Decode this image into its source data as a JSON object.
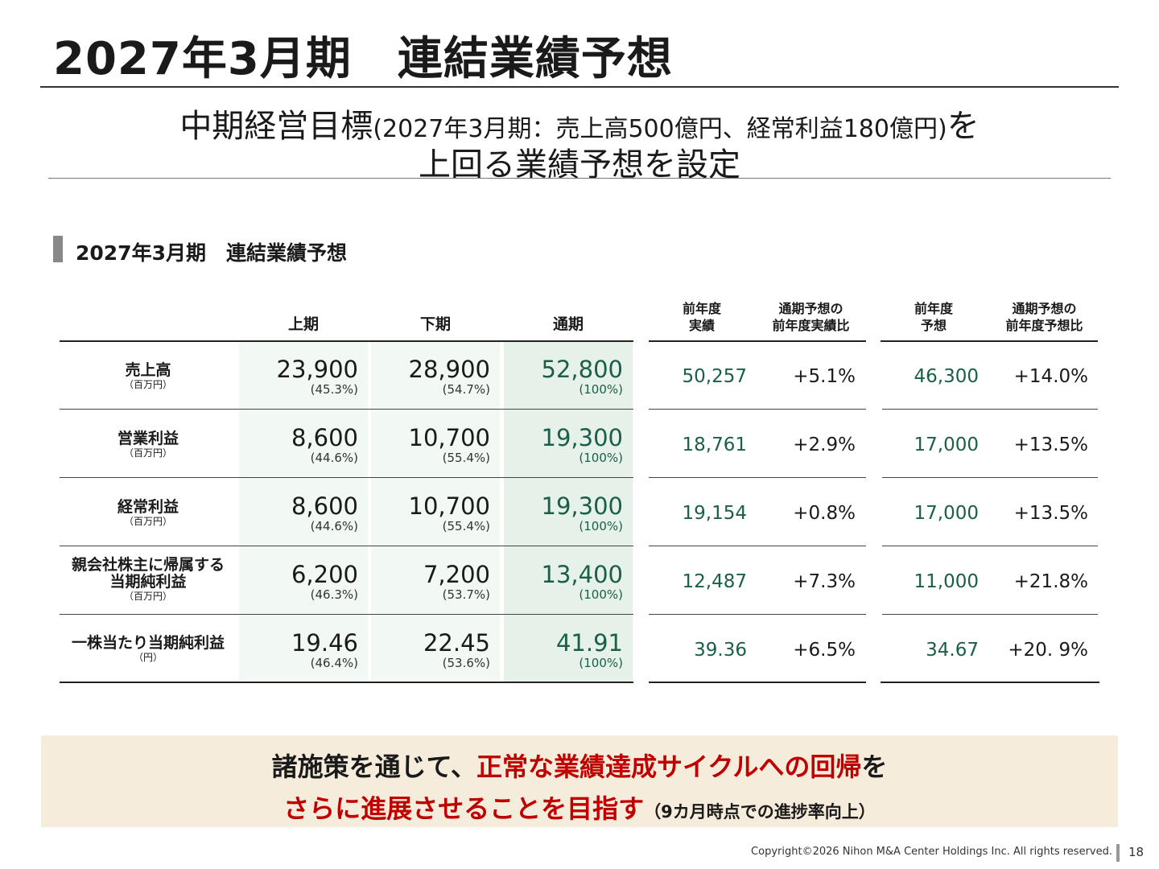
{
  "page_title": "2027年3月期　連結業績予想",
  "headline": {
    "line1_main": "中期経営目標",
    "line1_paren": "(2027年3月期：売上高500億円、経常利益180億円)",
    "line1_tail": "を",
    "line2": "上回る業績予想を設定"
  },
  "section_title": "2027年3月期　連結業績予想",
  "table": {
    "headers": {
      "h1": "上期",
      "h2": "下期",
      "full": "通期",
      "prev_actual_l1": "前年度",
      "prev_actual_l2": "実績",
      "vs_actual_l1": "通期予想の",
      "vs_actual_l2": "前年度実績比",
      "prev_forecast_l1": "前年度",
      "prev_forecast_l2": "予想",
      "vs_forecast_l1": "通期予想の",
      "vs_forecast_l2": "前年度予想比"
    },
    "rows": [
      {
        "label1": "売上高",
        "label2": "",
        "unit": "（百万円）",
        "h1": "23,900",
        "h1_pct": "(45.3%)",
        "h2": "28,900",
        "h2_pct": "(54.7%)",
        "full": "52,800",
        "full_pct": "(100%)",
        "prev_actual": "50,257",
        "vs_actual": "+5.1%",
        "prev_forecast": "46,300",
        "vs_forecast": "+14.0%"
      },
      {
        "label1": "営業利益",
        "label2": "",
        "unit": "（百万円）",
        "h1": "8,600",
        "h1_pct": "(44.6%)",
        "h2": "10,700",
        "h2_pct": "(55.4%)",
        "full": "19,300",
        "full_pct": "(100%)",
        "prev_actual": "18,761",
        "vs_actual": "+2.9%",
        "prev_forecast": "17,000",
        "vs_forecast": "+13.5%"
      },
      {
        "label1": "経常利益",
        "label2": "",
        "unit": "（百万円）",
        "h1": "8,600",
        "h1_pct": "(44.6%)",
        "h2": "10,700",
        "h2_pct": "(55.4%)",
        "full": "19,300",
        "full_pct": "(100%)",
        "prev_actual": "19,154",
        "vs_actual": "+0.8%",
        "prev_forecast": "17,000",
        "vs_forecast": "+13.5%"
      },
      {
        "label1": "親会社株主に帰属する",
        "label2": "当期純利益",
        "unit": "（百万円）",
        "h1": "6,200",
        "h1_pct": "(46.3%)",
        "h2": "7,200",
        "h2_pct": "(53.7%)",
        "full": "13,400",
        "full_pct": "(100%)",
        "prev_actual": "12,487",
        "vs_actual": "+7.3%",
        "prev_forecast": "11,000",
        "vs_forecast": "+21.8%"
      },
      {
        "label1": "一株当たり当期純利益",
        "label2": "",
        "unit": "（円）",
        "h1": "19.46",
        "h1_pct": "(46.4%)",
        "h2": "22.45",
        "h2_pct": "(53.6%)",
        "full": "41.91",
        "full_pct": "(100%)",
        "prev_actual": "39.36",
        "vs_actual": "+6.5%",
        "prev_forecast": "34.67",
        "vs_forecast": "+20. 9%"
      }
    ]
  },
  "banner": {
    "line1_a": "諸施策を通じて、",
    "line1_b": "正常な業績達成サイクルへの回帰",
    "line1_c": "を",
    "line2_a": "さらに進展させることを目指す",
    "line2_note": "（9カ月時点での進捗率向上）"
  },
  "footer": {
    "copyright": "Copyright©2026 Nihon M&A Center Holdings Inc. All rights reserved.",
    "page_number": "18"
  },
  "colors": {
    "accent_green": "#1b5e4a",
    "accent_red": "#c00000",
    "banner_bg": "#f5ecdc",
    "column_shade": "#f2f8f4",
    "column_shade_full": "#e5f1e9"
  }
}
